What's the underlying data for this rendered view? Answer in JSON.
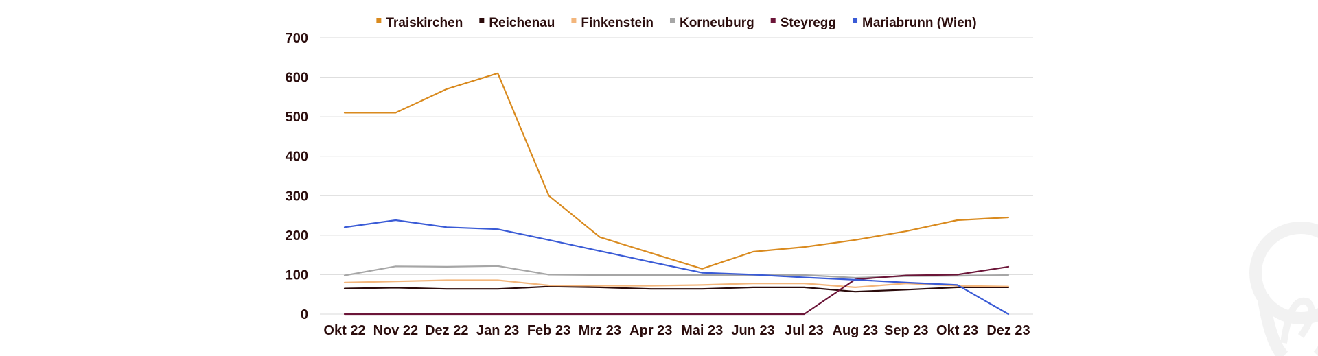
{
  "chart_data": {
    "type": "line",
    "title": "",
    "xlabel": "",
    "ylabel": "",
    "categories": [
      "Okt 22",
      "Nov 22",
      "Dez 22",
      "Jan 23",
      "Feb 23",
      "Mrz 23",
      "Apr 23",
      "Mai 23",
      "Jun 23",
      "Jul 23",
      "Aug 23",
      "Sep 23",
      "Okt 23",
      "Dez 23"
    ],
    "ylim": [
      0,
      700
    ],
    "yticks": [
      0,
      100,
      200,
      300,
      400,
      500,
      600,
      700
    ],
    "grid": true,
    "legend_position": "top",
    "series": [
      {
        "name": "Traiskirchen",
        "color": "#d98a1e",
        "values": [
          510,
          510,
          570,
          610,
          300,
          195,
          155,
          115,
          158,
          170,
          188,
          210,
          238,
          245
        ]
      },
      {
        "name": "Reichenau",
        "color": "#2a0a0a",
        "values": [
          65,
          67,
          64,
          64,
          70,
          68,
          64,
          64,
          68,
          68,
          57,
          62,
          68,
          68
        ]
      },
      {
        "name": "Finkenstein",
        "color": "#f3b67c",
        "values": [
          80,
          83,
          86,
          86,
          73,
          72,
          72,
          74,
          78,
          78,
          68,
          78,
          72,
          70
        ]
      },
      {
        "name": "Korneuburg",
        "color": "#a6a6a6",
        "values": [
          98,
          121,
          120,
          122,
          100,
          99,
          99,
          99,
          99,
          99,
          92,
          96,
          97,
          99
        ]
      },
      {
        "name": "Steyregg",
        "color": "#6b1538",
        "values": [
          0,
          0,
          0,
          0,
          0,
          0,
          0,
          0,
          0,
          0,
          88,
          98,
          100,
          120
        ]
      },
      {
        "name": "Mariabrunn (Wien)",
        "color": "#3a5bd6",
        "values": [
          220,
          238,
          220,
          215,
          188,
          160,
          132,
          105,
          100,
          93,
          87,
          80,
          74,
          0
        ]
      }
    ]
  }
}
